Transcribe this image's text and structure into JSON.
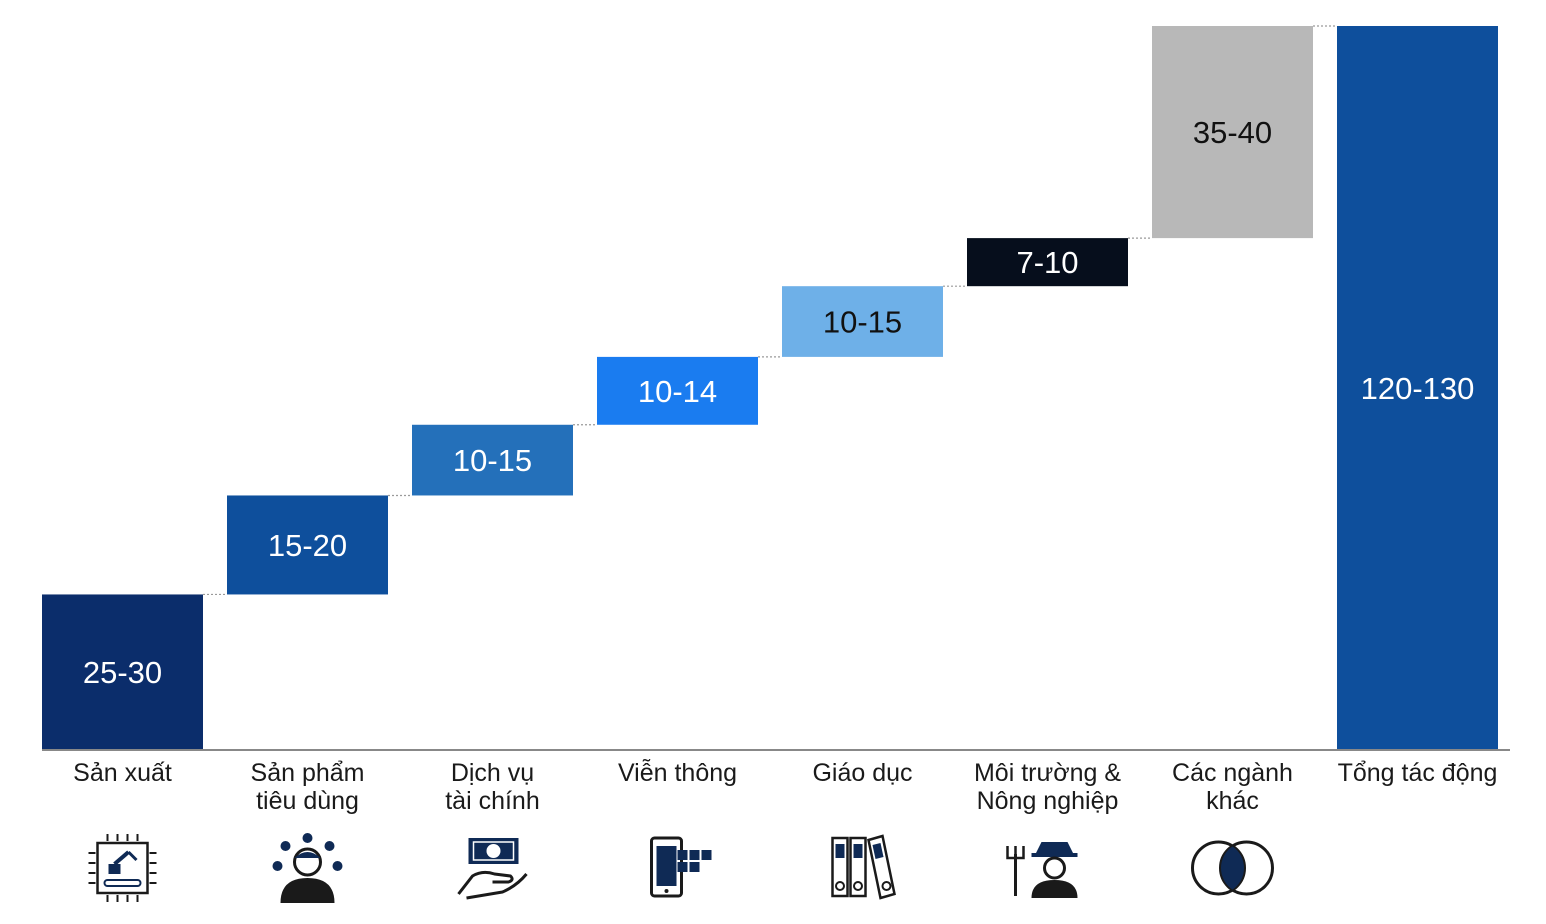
{
  "chart_data": {
    "type": "bar",
    "subtype": "waterfall",
    "categories": [
      [
        "Sản xuất"
      ],
      [
        "Sản phẩm",
        "tiêu dùng"
      ],
      [
        "Dịch vụ",
        "tài chính"
      ],
      [
        "Viễn thông"
      ],
      [
        "Giáo dục"
      ],
      [
        "Môi trường &",
        "Nông nghiệp"
      ],
      [
        "Các ngành",
        "khác"
      ],
      [
        "Tổng tác động"
      ]
    ],
    "labels": [
      "25-30",
      "15-20",
      "10-15",
      "10-14",
      "10-15",
      "7-10",
      "35-40",
      "120-130"
    ],
    "ranges": [
      [
        25,
        30
      ],
      [
        15,
        20
      ],
      [
        10,
        15
      ],
      [
        10,
        14
      ],
      [
        10,
        15
      ],
      [
        7,
        10
      ],
      [
        35,
        40
      ],
      [
        120,
        130
      ]
    ],
    "values": [
      27.5,
      17.5,
      12.5,
      12,
      12.5,
      8.5,
      37.5,
      128
    ],
    "is_total": [
      false,
      false,
      false,
      false,
      false,
      false,
      false,
      true
    ],
    "colors": [
      "#0b2d6b",
      "#0e4f9c",
      "#2470ba",
      "#1a7cf0",
      "#6eb0e8",
      "#060e1c",
      "#b8b8b8",
      "#0e4f9c"
    ],
    "label_colors": [
      "#ffffff",
      "#ffffff",
      "#ffffff",
      "#ffffff",
      "#111111",
      "#ffffff",
      "#111111",
      "#ffffff"
    ],
    "ylim": [
      0,
      128
    ],
    "grid": false,
    "connectors": "dotted",
    "icons": [
      "chip-robot-arm-icon",
      "person-ideas-icon",
      "hand-dollar-icon",
      "phone-blocks-icon",
      "binders-icon",
      "farmer-pitchfork-icon",
      "venn-circles-icon",
      ""
    ]
  }
}
